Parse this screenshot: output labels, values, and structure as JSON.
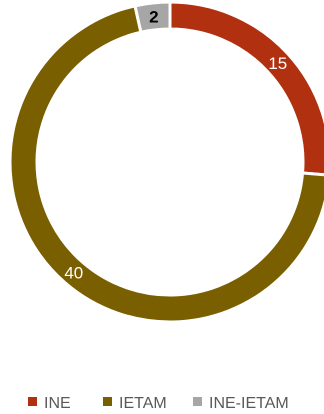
{
  "chart_data": {
    "type": "pie",
    "donut": true,
    "title": "",
    "start_angle_deg": 0,
    "categories": [
      "INE",
      "IETAM",
      "INE-IETAM"
    ],
    "values": [
      15,
      40,
      2
    ],
    "data_labels": [
      "15",
      "40",
      "2"
    ],
    "colors": [
      "#b0300f",
      "#7a5f00",
      "#a6a6a6"
    ],
    "label_colors": [
      "#ffffff",
      "#ffffff",
      "#000000"
    ],
    "label_bold": [
      false,
      false,
      true
    ],
    "legend": {
      "position": "bottom",
      "entries": [
        "INE",
        "IETAM",
        "INE-IETAM"
      ]
    }
  }
}
